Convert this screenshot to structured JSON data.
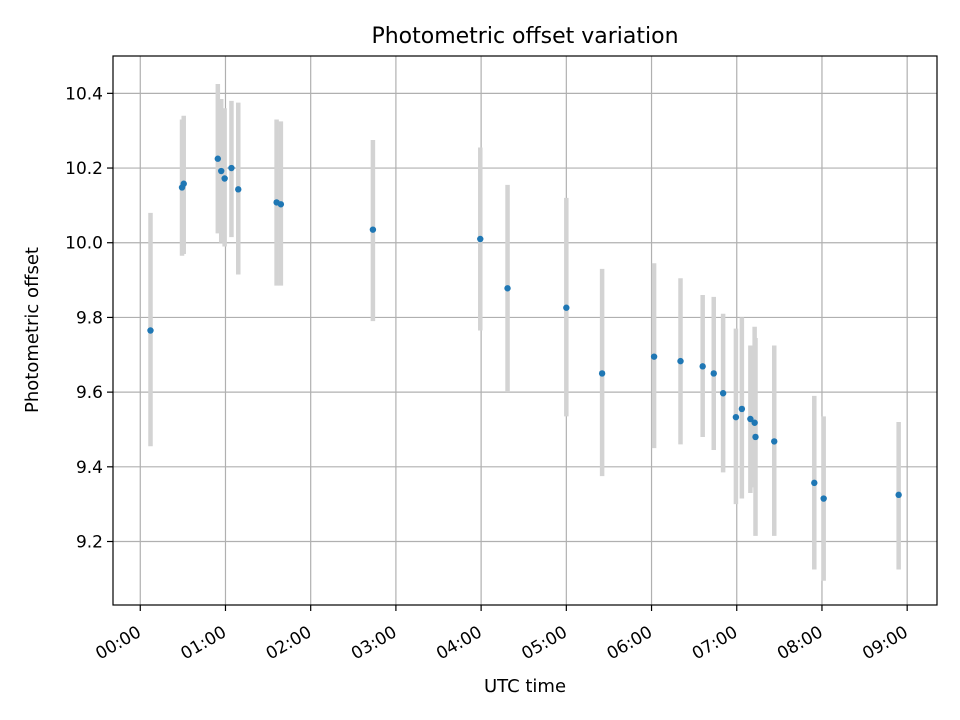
{
  "chart_data": {
    "type": "scatter",
    "title": "Photometric offset variation",
    "xlabel": "UTC time",
    "ylabel": "Photometric offset",
    "x_unit": "hours",
    "xlim": [
      -0.32,
      9.35
    ],
    "ylim": [
      9.03,
      10.5
    ],
    "x_ticks": [
      0,
      1,
      2,
      3,
      4,
      5,
      6,
      7,
      8,
      9
    ],
    "x_tick_labels": [
      "00:00",
      "01:00",
      "02:00",
      "03:00",
      "04:00",
      "05:00",
      "06:00",
      "07:00",
      "08:00",
      "09:00"
    ],
    "y_ticks": [
      9.2,
      9.4,
      9.6,
      9.8,
      10.0,
      10.2,
      10.4
    ],
    "y_tick_labels": [
      "9.2",
      "9.4",
      "9.6",
      "9.8",
      "10.0",
      "10.2",
      "10.4"
    ],
    "grid": true,
    "marker_color": "#1f77b4",
    "errorbar_color": "#d3d3d3",
    "points": [
      {
        "x": 0.12,
        "y": 9.765,
        "ylo": 9.455,
        "yhi": 10.08
      },
      {
        "x": 0.49,
        "y": 10.148,
        "ylo": 9.965,
        "yhi": 10.33
      },
      {
        "x": 0.51,
        "y": 10.158,
        "ylo": 9.97,
        "yhi": 10.34
      },
      {
        "x": 0.91,
        "y": 10.225,
        "ylo": 10.025,
        "yhi": 10.425
      },
      {
        "x": 0.95,
        "y": 10.192,
        "ylo": 10.0,
        "yhi": 10.385
      },
      {
        "x": 0.99,
        "y": 10.172,
        "ylo": 9.99,
        "yhi": 10.36
      },
      {
        "x": 1.07,
        "y": 10.2,
        "ylo": 10.015,
        "yhi": 10.38
      },
      {
        "x": 1.15,
        "y": 10.143,
        "ylo": 9.915,
        "yhi": 10.375
      },
      {
        "x": 1.6,
        "y": 10.108,
        "ylo": 9.885,
        "yhi": 10.33
      },
      {
        "x": 1.65,
        "y": 10.103,
        "ylo": 9.885,
        "yhi": 10.325
      },
      {
        "x": 2.73,
        "y": 10.035,
        "ylo": 9.79,
        "yhi": 10.275
      },
      {
        "x": 3.99,
        "y": 10.01,
        "ylo": 9.765,
        "yhi": 10.255
      },
      {
        "x": 4.31,
        "y": 9.878,
        "ylo": 9.6,
        "yhi": 10.155
      },
      {
        "x": 5.0,
        "y": 9.826,
        "ylo": 9.535,
        "yhi": 10.12
      },
      {
        "x": 5.42,
        "y": 9.65,
        "ylo": 9.375,
        "yhi": 9.93
      },
      {
        "x": 6.03,
        "y": 9.695,
        "ylo": 9.45,
        "yhi": 9.945
      },
      {
        "x": 6.34,
        "y": 9.683,
        "ylo": 9.46,
        "yhi": 9.905
      },
      {
        "x": 6.6,
        "y": 9.669,
        "ylo": 9.48,
        "yhi": 9.86
      },
      {
        "x": 6.73,
        "y": 9.65,
        "ylo": 9.445,
        "yhi": 9.855
      },
      {
        "x": 6.84,
        "y": 9.597,
        "ylo": 9.385,
        "yhi": 9.81
      },
      {
        "x": 6.99,
        "y": 9.533,
        "ylo": 9.3,
        "yhi": 9.77
      },
      {
        "x": 7.06,
        "y": 9.555,
        "ylo": 9.315,
        "yhi": 9.8
      },
      {
        "x": 7.16,
        "y": 9.528,
        "ylo": 9.33,
        "yhi": 9.725
      },
      {
        "x": 7.21,
        "y": 9.518,
        "ylo": 9.345,
        "yhi": 9.775
      },
      {
        "x": 7.22,
        "y": 9.48,
        "ylo": 9.215,
        "yhi": 9.745
      },
      {
        "x": 7.44,
        "y": 9.468,
        "ylo": 9.215,
        "yhi": 9.725
      },
      {
        "x": 7.91,
        "y": 9.357,
        "ylo": 9.125,
        "yhi": 9.59
      },
      {
        "x": 8.02,
        "y": 9.315,
        "ylo": 9.095,
        "yhi": 9.535
      },
      {
        "x": 8.9,
        "y": 9.325,
        "ylo": 9.125,
        "yhi": 9.52
      }
    ]
  }
}
